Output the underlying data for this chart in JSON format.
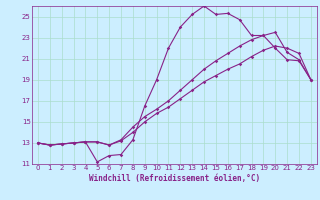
{
  "background_color": "#cceeff",
  "grid_color": "#aaddcc",
  "line_color": "#882288",
  "xlabel": "Windchill (Refroidissement éolien,°C)",
  "xlim": [
    -0.5,
    23.5
  ],
  "ylim": [
    11,
    26
  ],
  "yticks": [
    11,
    13,
    15,
    17,
    19,
    21,
    23,
    25
  ],
  "xticks": [
    0,
    1,
    2,
    3,
    4,
    5,
    6,
    7,
    8,
    9,
    10,
    11,
    12,
    13,
    14,
    15,
    16,
    17,
    18,
    19,
    20,
    21,
    22,
    23
  ],
  "line1_x": [
    0,
    1,
    2,
    3,
    4,
    5,
    6,
    7,
    8,
    9,
    10,
    11,
    12,
    13,
    14,
    15,
    16,
    17,
    18,
    19,
    20,
    21,
    22,
    23
  ],
  "line1_y": [
    13,
    12.8,
    12.9,
    13.0,
    13.1,
    11.2,
    11.8,
    11.9,
    13.3,
    16.5,
    19.0,
    22.0,
    24.0,
    25.2,
    26.0,
    25.2,
    25.3,
    24.7,
    23.2,
    23.2,
    22.0,
    20.9,
    20.8,
    19.0
  ],
  "line2_x": [
    0,
    1,
    2,
    3,
    4,
    5,
    6,
    7,
    8,
    9,
    10,
    11,
    12,
    13,
    14,
    15,
    16,
    17,
    18,
    19,
    20,
    21,
    22,
    23
  ],
  "line2_y": [
    13,
    12.8,
    12.9,
    13.0,
    13.1,
    13.1,
    12.8,
    13.3,
    14.5,
    15.5,
    16.2,
    17.0,
    18.0,
    19.0,
    20.0,
    20.8,
    21.5,
    22.2,
    22.8,
    23.2,
    23.5,
    21.6,
    20.9,
    19.0
  ],
  "line3_x": [
    0,
    1,
    2,
    3,
    4,
    5,
    6,
    7,
    8,
    9,
    10,
    11,
    12,
    13,
    14,
    15,
    16,
    17,
    18,
    19,
    20,
    21,
    22,
    23
  ],
  "line3_y": [
    13,
    12.8,
    12.9,
    13.0,
    13.1,
    13.1,
    12.8,
    13.2,
    14.0,
    15.0,
    15.8,
    16.4,
    17.2,
    18.0,
    18.8,
    19.4,
    20.0,
    20.5,
    21.2,
    21.8,
    22.2,
    22.0,
    21.5,
    19.0
  ],
  "marker_size": 1.8,
  "line_width": 0.8,
  "tick_fontsize": 5.0,
  "xlabel_fontsize": 5.5
}
